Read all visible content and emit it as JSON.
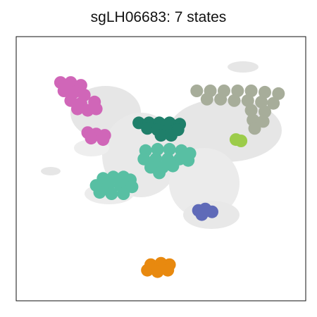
{
  "chart_data": {
    "type": "scatter",
    "title": "sgLH06683: 7 states",
    "xlabel": "",
    "ylabel": "",
    "axes_ticks": false,
    "grid": false,
    "legend": "none",
    "background_color": "#e6e6e6",
    "clusters": [
      {
        "name": "",
        "color": "#d066b8",
        "points": [
          [
            -7.4,
            6.2
          ],
          [
            -6.8,
            6.2
          ],
          [
            -6.2,
            6.0
          ],
          [
            -7.2,
            5.6
          ],
          [
            -6.6,
            5.5
          ],
          [
            -6.0,
            5.3
          ],
          [
            -6.8,
            4.9
          ],
          [
            -6.2,
            4.7
          ],
          [
            -5.4,
            4.8
          ],
          [
            -6.4,
            4.3
          ],
          [
            -5.8,
            4.2
          ],
          [
            -5.3,
            4.3
          ]
        ]
      },
      {
        "name": "",
        "color": "#d066b8",
        "points": [
          [
            -5.8,
            2.6
          ],
          [
            -5.3,
            2.5
          ],
          [
            -4.8,
            2.4
          ],
          [
            -5.6,
            2.2
          ],
          [
            -4.9,
            2.1
          ]
        ]
      },
      {
        "name": "",
        "color": "#1f7f6a",
        "points": [
          [
            -2.8,
            3.3
          ],
          [
            -2.2,
            3.3
          ],
          [
            -1.6,
            3.3
          ],
          [
            -1.0,
            3.3
          ],
          [
            -0.4,
            3.2
          ],
          [
            -2.3,
            2.9
          ],
          [
            -1.7,
            2.8
          ],
          [
            -1.1,
            2.7
          ],
          [
            -0.5,
            2.8
          ],
          [
            -1.5,
            2.4
          ],
          [
            -0.9,
            2.4
          ]
        ]
      },
      {
        "name": "",
        "color": "#58bfa3",
        "points": [
          [
            -2.4,
            1.3
          ],
          [
            -1.7,
            1.4
          ],
          [
            -1.0,
            1.4
          ],
          [
            -0.3,
            1.3
          ],
          [
            0.2,
            1.1
          ],
          [
            -2.5,
            0.7
          ],
          [
            -1.8,
            0.7
          ],
          [
            -1.1,
            0.7
          ],
          [
            -0.4,
            0.7
          ],
          [
            0.1,
            0.6
          ],
          [
            -2.1,
            0.1
          ],
          [
            -1.4,
            0.1
          ],
          [
            -0.8,
            0.2
          ],
          [
            -1.6,
            -0.3
          ]
        ]
      },
      {
        "name": "",
        "color": "#58bfa3",
        "points": [
          [
            -4.9,
            -0.7
          ],
          [
            -4.3,
            -0.6
          ],
          [
            -3.7,
            -0.6
          ],
          [
            -3.3,
            -0.8
          ],
          [
            -5.3,
            -1.2
          ],
          [
            -4.6,
            -1.2
          ],
          [
            -3.9,
            -1.2
          ],
          [
            -3.2,
            -1.3
          ],
          [
            -5.1,
            -1.7
          ],
          [
            -4.4,
            -1.8
          ],
          [
            -3.7,
            -1.8
          ]
        ]
      },
      {
        "name": "",
        "color": "#a7ad9a",
        "points": [
          [
            0.6,
            5.6
          ],
          [
            1.4,
            5.6
          ],
          [
            2.2,
            5.6
          ],
          [
            3.0,
            5.6
          ],
          [
            3.8,
            5.6
          ],
          [
            4.6,
            5.5
          ],
          [
            5.4,
            5.4
          ],
          [
            1.2,
            5.0
          ],
          [
            2.0,
            5.0
          ],
          [
            2.8,
            4.9
          ],
          [
            3.6,
            4.9
          ],
          [
            4.4,
            4.8
          ],
          [
            5.1,
            4.7
          ],
          [
            3.8,
            4.2
          ],
          [
            4.6,
            4.1
          ],
          [
            3.9,
            3.5
          ],
          [
            4.5,
            3.4
          ],
          [
            4.0,
            2.9
          ]
        ]
      },
      {
        "name": "",
        "color": "#9ccc4a",
        "points": [
          [
            2.9,
            2.1
          ],
          [
            3.2,
            2.0
          ]
        ]
      },
      {
        "name": "",
        "color": "#5f6ab8",
        "points": [
          [
            0.7,
            -3.0
          ],
          [
            1.1,
            -2.9
          ],
          [
            1.5,
            -3.1
          ],
          [
            0.9,
            -3.3
          ]
        ]
      },
      {
        "name": "",
        "color": "#e8890f",
        "points": [
          [
            -2.1,
            -6.9
          ],
          [
            -1.5,
            -6.8
          ],
          [
            -1.0,
            -6.9
          ],
          [
            -2.3,
            -7.3
          ],
          [
            -1.7,
            -7.4
          ],
          [
            -1.1,
            -7.3
          ]
        ]
      }
    ],
    "xlim": [
      -10,
      7
    ],
    "ylim": [
      -9.5,
      9.5
    ]
  }
}
